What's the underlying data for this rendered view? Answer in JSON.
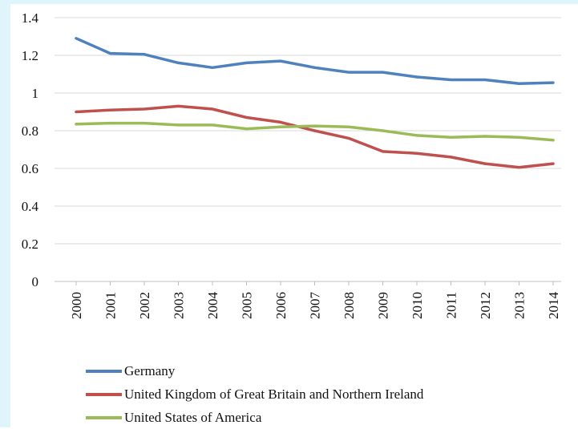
{
  "chart_data": {
    "type": "line",
    "x": [
      "2000",
      "2001",
      "2002",
      "2003",
      "2004",
      "2005",
      "2006",
      "2007",
      "2008",
      "2009",
      "2010",
      "2011",
      "2012",
      "2013",
      "2014"
    ],
    "ylim": [
      0,
      1.4
    ],
    "yticks": [
      "0",
      "0.2",
      "0.4",
      "0.6",
      "0.8",
      "1",
      "1.2",
      "1.4"
    ],
    "grid": "horizontal",
    "legend_position": "bottom",
    "series": [
      {
        "name": "Germany",
        "color": "#4f81bd",
        "values": [
          1.29,
          1.21,
          1.205,
          1.16,
          1.135,
          1.16,
          1.17,
          1.135,
          1.11,
          1.11,
          1.085,
          1.07,
          1.07,
          1.05,
          1.055
        ]
      },
      {
        "name": "United Kingdom of Great Britain and Northern Ireland",
        "color": "#c0504d",
        "values": [
          0.9,
          0.91,
          0.915,
          0.93,
          0.915,
          0.87,
          0.845,
          0.8,
          0.76,
          0.69,
          0.68,
          0.66,
          0.625,
          0.605,
          0.625
        ]
      },
      {
        "name": "United States of America",
        "color": "#9bbb59",
        "values": [
          0.835,
          0.84,
          0.84,
          0.83,
          0.83,
          0.81,
          0.82,
          0.825,
          0.82,
          0.8,
          0.775,
          0.765,
          0.77,
          0.765,
          0.75
        ]
      }
    ]
  }
}
